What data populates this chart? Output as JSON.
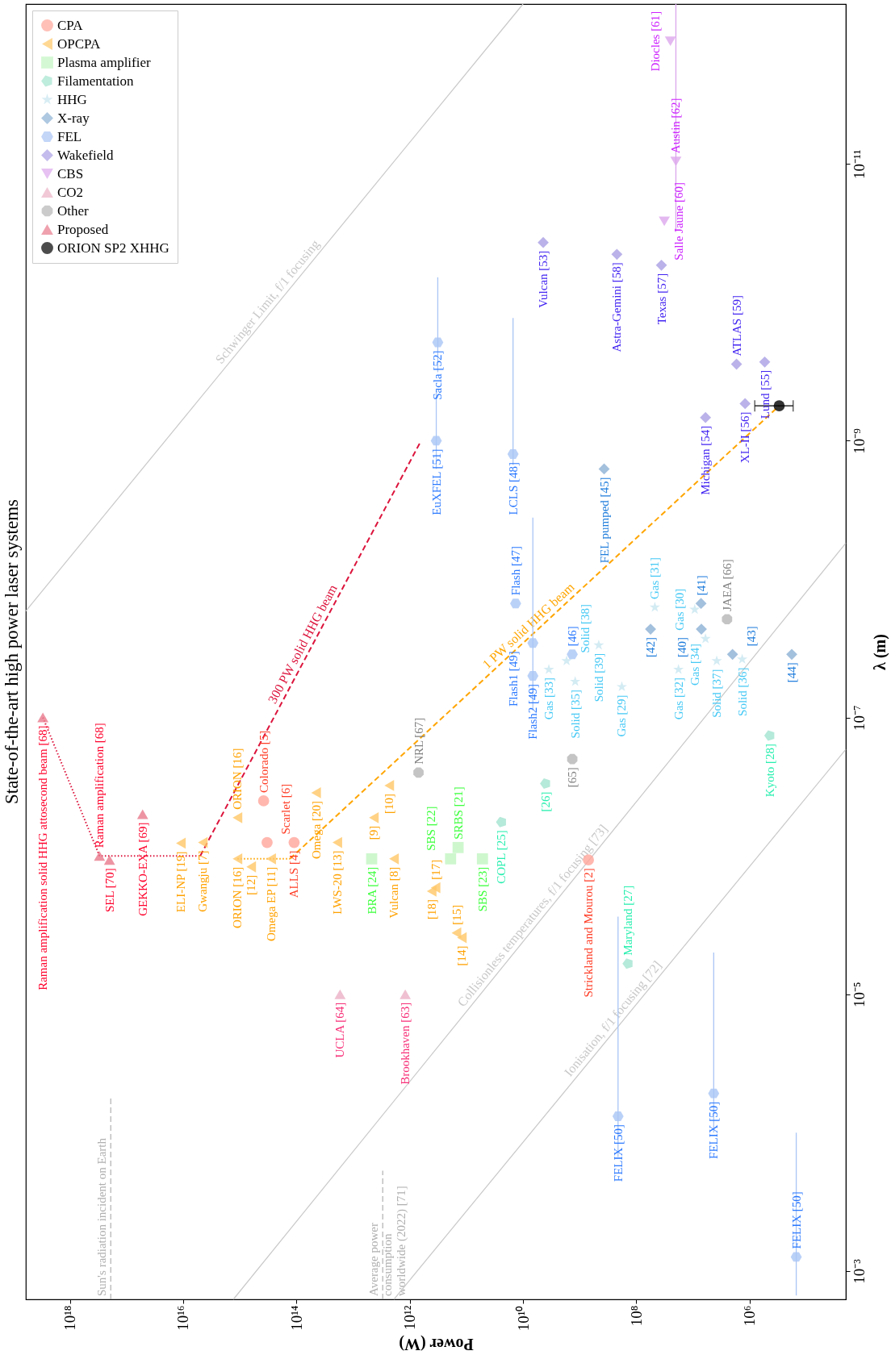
{
  "chart_data": {
    "type": "scatter",
    "title": "State-of-the-art high power laser systems",
    "xlabel": "Power (W)",
    "ylabel": "λ (m)",
    "log": "xy",
    "xlim": [
      6e+18,
      20000
    ],
    "ylim": [
      0.0016,
      7e-13
    ],
    "xticks": [
      {
        "value": 1e+18,
        "label": "10¹⁸"
      },
      {
        "value": 1e+16,
        "label": "10¹⁶"
      },
      {
        "value": 100000000000000.0,
        "label": "10¹⁴"
      },
      {
        "value": 1000000000000.0,
        "label": "10¹²"
      },
      {
        "value": 10000000000.0,
        "label": "10¹⁰"
      },
      {
        "value": 100000000.0,
        "label": "10⁸"
      },
      {
        "value": 1000000.0,
        "label": "10⁶"
      }
    ],
    "yticks": [
      {
        "value": 0.001,
        "label": "10⁻³"
      },
      {
        "value": 1e-05,
        "label": "10⁻⁵"
      },
      {
        "value": 1e-07,
        "label": "10⁻⁷"
      },
      {
        "value": 1e-09,
        "label": "10⁻⁹"
      },
      {
        "value": 1e-11,
        "label": "10⁻¹¹"
      }
    ],
    "legend": "top left",
    "ref_lines": [
      {
        "axis": "x",
        "value": 1.9e+17,
        "label": "Sun's radiation incident on Earth",
        "line_style": "dashed",
        "color": "#b0b0b0"
      },
      {
        "axis": "x",
        "value": 3000000000000.0,
        "label": "Average power\nconsumption\nworldwide (2022) [71]",
        "line_style": "dashed",
        "color": "#b0b0b0"
      }
    ],
    "series": [
      {
        "type": "line",
        "name": "Schwinger Limit, f/1 focusing",
        "color": "#c8c8c8",
        "line_style": "solid",
        "x": [
          6e+18,
          10000000000.0
        ],
        "values": [
          1.7e-08,
          7e-13
        ]
      },
      {
        "type": "line",
        "name": "Collisionless temperatures, f/1 focusing [73]",
        "color": "#c8c8c8",
        "line_style": "solid",
        "x": [
          1300000000000000.0,
          20000
        ],
        "values": [
          0.0016,
          5.5e-09
        ]
      },
      {
        "type": "line",
        "name": "Ionisation, f/1 focusing [72]",
        "color": "#c8c8c8",
        "line_style": "solid",
        "x": [
          1900000000000.0,
          20000
        ],
        "values": [
          0.0016,
          1.7e-07
        ]
      },
      {
        "type": "line",
        "color": "#dc143c",
        "line_style": "dotted",
        "x": [
          3e+18,
          3e+17,
          5000000000000000.0
        ],
        "values": [
          1e-07,
          1e-06,
          1e-06
        ]
      },
      {
        "type": "line",
        "name": "300 PW solid HHG beam",
        "color": "#dc143c",
        "line_style": "dashed",
        "x": [
          5000000000000000.0,
          630000000000.0
        ],
        "values": [
          1e-06,
          1e-09
        ]
      },
      {
        "type": "line",
        "color": "#ffa500",
        "line_style": "dotted",
        "x": [
          1100000000000000.0,
          130000000000000.0
        ],
        "values": [
          1.05e-06,
          1.05e-06
        ]
      },
      {
        "type": "line",
        "name": "1 PW solid HHG beam",
        "color": "#ffa500",
        "line_style": "dashed",
        "x": [
          130000000000000.0,
          300000.0
        ],
        "values": [
          1.05e-06,
          5.6e-10
        ]
      },
      {
        "type": "scatter",
        "name": "CPA",
        "color": "#ffa59a",
        "marker": "circle",
        "x": [
          380000000000000.0,
          330000000000000.0,
          110000000000000.0,
          700000000.0
        ],
        "values": [
          4e-07,
          8e-07,
          8e-07,
          1.07e-06
        ]
      },
      {
        "type": "scatter",
        "name": "OPCPA",
        "color": "#ffc766",
        "marker": "triangle-left",
        "x": [
          1.1e+16,
          4500000000000000.0,
          1100000000000000.0,
          1100000000000000.0,
          630000000000000.0,
          280000000000000.0,
          45000000000000.0,
          19000000000000.0,
          1900000000000.0,
          4300000000000.0,
          2300000000000.0,
          350000000000.0,
          410000000000.0,
          150000000000.0,
          120000000000.0
        ],
        "values": [
          8.1e-07,
          8e-07,
          5.3e-07,
          1.05e-06,
          1.2e-06,
          1.05e-06,
          3.5e-07,
          8e-07,
          1.05e-06,
          5.3e-07,
          3.1e-07,
          1.7e-06,
          1.8e-06,
          3.6e-06,
          3.9e-06
        ]
      },
      {
        "type": "scatter",
        "name": "Plasma amplifier",
        "color": "#c2f5c2",
        "marker": "square",
        "x": [
          4700000000000.0,
          140000000000.0,
          190000000000.0,
          52000000000.0
        ],
        "values": [
          1.05e-06,
          8.7e-07,
          1.05e-06,
          1.05e-06
        ]
      },
      {
        "type": "scatter",
        "name": "Filamentation",
        "color": "#a3e4cf",
        "x": [
          24000000000.0,
          4000000000.0,
          140000000.0,
          440000.0
        ],
        "values": [
          5.7e-07,
          3e-07,
          6e-06,
          1.35e-07
        ]
      },
      {
        "type": "scatter",
        "name": "HHG",
        "color": "#c8e6f0",
        "marker": "star",
        "x": [
          47000000.0,
          9300000.0,
          6000000.0,
          460000000.0,
          1700000000.0,
          3500000000.0,
          1200000000.0,
          18000000.0,
          180000000.0,
          3800000.0,
          1350000.0
        ],
        "values": [
          1.6e-08,
          1.66e-08,
          2.7e-08,
          3e-08,
          3.9e-08,
          4.5e-08,
          5.5e-08,
          4.5e-08,
          6e-08,
          3.9e-08,
          3.8e-08
        ]
      },
      {
        "type": "scatter",
        "name": "X-ray",
        "color": "#8cb0d4",
        "marker": "diamond",
        "x": [
          370000000.0,
          7200000.0,
          56000000.0,
          7100000.0,
          2000000.0,
          180000.0
        ],
        "values": [
          1.6e-09,
          1.5e-08,
          2.3e-08,
          2.3e-08,
          3.5e-08,
          3.5e-08
        ]
      },
      {
        "type": "scatter",
        "name": "FEL",
        "color": "#a9c5f5",
        "x": [
          320000000000.0,
          340000000000.0,
          15000000000.0,
          13500000000.0,
          6700000000.0,
          6700000000.0,
          1350000000.0,
          210000000.0,
          4300000.0,
          150000.0
        ],
        "values": [
          1.95e-10,
          1e-09,
          1.25e-09,
          1.5e-08,
          2.9e-08,
          5e-08,
          3.5e-08,
          7.6e-05,
          5.2e-05,
          0.00079
        ],
        "errors": [
          [
            6.6e-11,
            3.2e-10
          ],
          [
            4.2e-10,
            1.6e-09
          ],
          [
            1.3e-10,
            1.5e-09
          ],
          null,
          [
            3.6e-09,
            8.9e-08
          ],
          null,
          null,
          [
            2.75e-06,
            0.00015
          ],
          [
            5e-06,
            0.0001
          ],
          [
            0.0001,
            0.0015
          ]
        ]
      },
      {
        "type": "scatter",
        "name": "Wakefield",
        "color": "#a99fe4",
        "marker": "diamond",
        "x": [
          4400000000.0,
          220000000.0,
          36000000.0,
          6000000.0,
          1200000.0,
          1700000.0,
          540000.0
        ],
        "values": [
          3.7e-11,
          4.5e-11,
          5.4e-11,
          6.8e-10,
          5.4e-10,
          2.8e-10,
          2.7e-10
        ]
      },
      {
        "type": "scatter",
        "name": "CBS",
        "color": "#dca6ec",
        "marker": "triangle-down",
        "x": [
          32000000.0,
          20000000.0,
          25000000.0
        ],
        "values": [
          2.6e-11,
          9.6e-12,
          1.3e-12
        ],
        "errors": [
          null,
          [
            7e-13,
            3.1e-11
          ],
          null
        ]
      },
      {
        "type": "scatter",
        "name": "CO2",
        "color": "#ebb0c5",
        "marker": "triangle-up",
        "x": [
          17000000000000.0,
          1200000000000.0
        ],
        "values": [
          1e-05,
          1e-05
        ]
      },
      {
        "type": "scatter",
        "name": "Other",
        "color": "#b5b5b5",
        "x": [
          700000000000.0,
          1350000000.0,
          2500000.0
        ],
        "values": [
          2.5e-07,
          2e-07,
          1.95e-08
        ]
      },
      {
        "type": "scatter",
        "name": "Proposed",
        "color": "#e8798c",
        "marker": "triangle-up",
        "x": [
          3e+18,
          3e+17,
          2e+17,
          5.2e+16
        ],
        "values": [
          1e-07,
          1e-06,
          1.07e-06,
          5e-07
        ]
      },
      {
        "type": "scatter",
        "name": "ORION SP2 XHHG",
        "color": "#000000",
        "marker": "circle",
        "x": [
          300000.0
        ],
        "values": [
          5.6e-10
        ],
        "xerrors": [
          [
            170000.0,
            810000.0
          ]
        ]
      }
    ],
    "annotations": [
      {
        "text": "Colorado [5]",
        "x": 380000000000000.0,
        "y": 4e-07
      },
      {
        "text": "Scarlet [6]",
        "x": 330000000000000.0,
        "y": 8e-07
      },
      {
        "text": "ALLS [4]",
        "x": 110000000000000.0,
        "y": 8e-07
      },
      {
        "text": "Strickland and Mourou [2]",
        "x": 700000000.0,
        "y": 1.07e-06
      },
      {
        "text": "ELI-NP [19]",
        "x": 1.1e+16,
        "y": 8.1e-07
      },
      {
        "text": "Gwangju [7]",
        "x": 4500000000000000.0,
        "y": 8e-07
      },
      {
        "text": "ORION [16]",
        "x": 1100000000000000.0,
        "y": 5.3e-07
      },
      {
        "text": "ORION [16]",
        "x": 1100000000000000.0,
        "y": 1.05e-06
      },
      {
        "text": "[12]",
        "x": 630000000000000.0,
        "y": 1.2e-06
      },
      {
        "text": "Omega EP [11]",
        "x": 280000000000000.0,
        "y": 1.05e-06
      },
      {
        "text": "Omega [20]",
        "x": 45000000000000.0,
        "y": 3.5e-07
      },
      {
        "text": "LWS-20 [13]",
        "x": 19000000000000.0,
        "y": 8e-07
      },
      {
        "text": "Vulcan [8]",
        "x": 1900000000000.0,
        "y": 1.05e-06
      },
      {
        "text": "[9]",
        "x": 4300000000000.0,
        "y": 5.3e-07
      },
      {
        "text": "[10]",
        "x": 2300000000000.0,
        "y": 3.1e-07
      },
      {
        "text": "[17]",
        "x": 350000000000.0,
        "y": 1.7e-06
      },
      {
        "text": "[18]",
        "x": 410000000000.0,
        "y": 1.8e-06
      },
      {
        "text": "[15]",
        "x": 150000000000.0,
        "y": 3.6e-06
      },
      {
        "text": "[14]",
        "x": 120000000000.0,
        "y": 3.9e-06
      },
      {
        "text": "BRA [24]",
        "x": 4700000000000.0,
        "y": 1.05e-06
      },
      {
        "text": "SRBS [21]",
        "x": 140000000000.0,
        "y": 8.7e-07
      },
      {
        "text": "SBS [22]",
        "x": 190000000000.0,
        "y": 1.05e-06
      },
      {
        "text": "SBS [23]",
        "x": 52000000000.0,
        "y": 1.05e-06
      },
      {
        "text": "COPL [25]",
        "x": 24000000000.0,
        "y": 5.7e-07
      },
      {
        "text": "[26]",
        "x": 4000000000.0,
        "y": 3e-07
      },
      {
        "text": "Maryland [27]",
        "x": 140000000.0,
        "y": 6e-06
      },
      {
        "text": "Kyoto [28]",
        "x": 440000.0,
        "y": 1.35e-07
      },
      {
        "text": "Gas [31]",
        "x": 47000000.0,
        "y": 1.6e-08
      },
      {
        "text": "Gas [30]",
        "x": 9300000.0,
        "y": 1.66e-08
      },
      {
        "text": "Gas [34]",
        "x": 6000000.0,
        "y": 2.7e-08
      },
      {
        "text": "Solid [39]",
        "x": 460000000.0,
        "y": 3e-08
      },
      {
        "text": "Solid [38]",
        "x": 1700000000.0,
        "y": 3.9e-08
      },
      {
        "text": "Gas [33]",
        "x": 3500000000.0,
        "y": 4.5e-08
      },
      {
        "text": "Solid [35]",
        "x": 1200000000.0,
        "y": 5.5e-08
      },
      {
        "text": "Gas [32]",
        "x": 18000000.0,
        "y": 4.5e-08
      },
      {
        "text": "Gas [29]",
        "x": 180000000.0,
        "y": 6e-08
      },
      {
        "text": "Solid [37]",
        "x": 3800000.0,
        "y": 3.9e-08
      },
      {
        "text": "Solid [36]",
        "x": 1350000.0,
        "y": 3.8e-08
      },
      {
        "text": "FEL pumped [45]",
        "x": 370000000.0,
        "y": 1.6e-09
      },
      {
        "text": "[41]",
        "x": 7200000.0,
        "y": 1.5e-08
      },
      {
        "text": "[42]",
        "x": 56000000.0,
        "y": 2.3e-08
      },
      {
        "text": "[40]",
        "x": 7100000.0,
        "y": 2.3e-08
      },
      {
        "text": "[43]",
        "x": 2000000.0,
        "y": 3.5e-08
      },
      {
        "text": "[44]",
        "x": 180000.0,
        "y": 3.5e-08
      },
      {
        "text": "Sacla [52]",
        "x": 320000000000.0,
        "y": 1.95e-10
      },
      {
        "text": "EuXFEL [51]",
        "x": 340000000000.0,
        "y": 1e-09
      },
      {
        "text": "LCLS [48]",
        "x": 15000000000.0,
        "y": 1.25e-09
      },
      {
        "text": "Flash [47]",
        "x": 13500000000.0,
        "y": 1.5e-08
      },
      {
        "text": "Flash1 [49]",
        "x": 6700000000.0,
        "y": 2.9e-08
      },
      {
        "text": "Flash2 [49]",
        "x": 6700000000.0,
        "y": 5e-08
      },
      {
        "text": "[46]",
        "x": 1350000000.0,
        "y": 3.5e-08
      },
      {
        "text": "FELIX [50]",
        "x": 210000000.0,
        "y": 7.6e-05
      },
      {
        "text": "FELIX [50]",
        "x": 4300000.0,
        "y": 5.2e-05
      },
      {
        "text": "FELIX [50]",
        "x": 150000.0,
        "y": 0.00079
      },
      {
        "text": "Vulcan [53]",
        "x": 4400000000.0,
        "y": 3.7e-11
      },
      {
        "text": "Astra-Gemini [58]",
        "x": 220000000.0,
        "y": 4.5e-11
      },
      {
        "text": "Texas [57]",
        "x": 36000000.0,
        "y": 5.4e-11
      },
      {
        "text": "Michigan [54]",
        "x": 6000000.0,
        "y": 6.8e-10
      },
      {
        "text": "XL-II [56]",
        "x": 1200000.0,
        "y": 5.4e-10
      },
      {
        "text": "ATLAS [59]",
        "x": 1700000.0,
        "y": 2.8e-10
      },
      {
        "text": "Lund [55]",
        "x": 540000.0,
        "y": 2.7e-10
      },
      {
        "text": "Salle Jaune [60]",
        "x": 32000000.0,
        "y": 2.6e-11
      },
      {
        "text": "Austin [62]",
        "x": 20000000.0,
        "y": 9.6e-12
      },
      {
        "text": "Diocles [61]",
        "x": 25000000.0,
        "y": 1.3e-12
      },
      {
        "text": "UCLA [64]",
        "x": 17000000000000.0,
        "y": 1e-05
      },
      {
        "text": "Brookhaven [63]",
        "x": 1200000000000.0,
        "y": 1e-05
      },
      {
        "text": "NRL [67]",
        "x": 700000000000.0,
        "y": 2.5e-07
      },
      {
        "text": "[65]",
        "x": 1350000000.0,
        "y": 2e-07
      },
      {
        "text": "JAEA [66]",
        "x": 2500000.0,
        "y": 1.95e-08
      },
      {
        "text": "Raman amplification solid HHG attosecond beam [68]",
        "x": 3e+18,
        "y": 1e-07
      },
      {
        "text": "Raman amplification [68]",
        "x": 3e+17,
        "y": 1e-06
      },
      {
        "text": "SEL [70]",
        "x": 2e+17,
        "y": 1.07e-06
      },
      {
        "text": "GEKKO-EXA [69]",
        "x": 5.2e+16,
        "y": 5e-07
      }
    ]
  }
}
